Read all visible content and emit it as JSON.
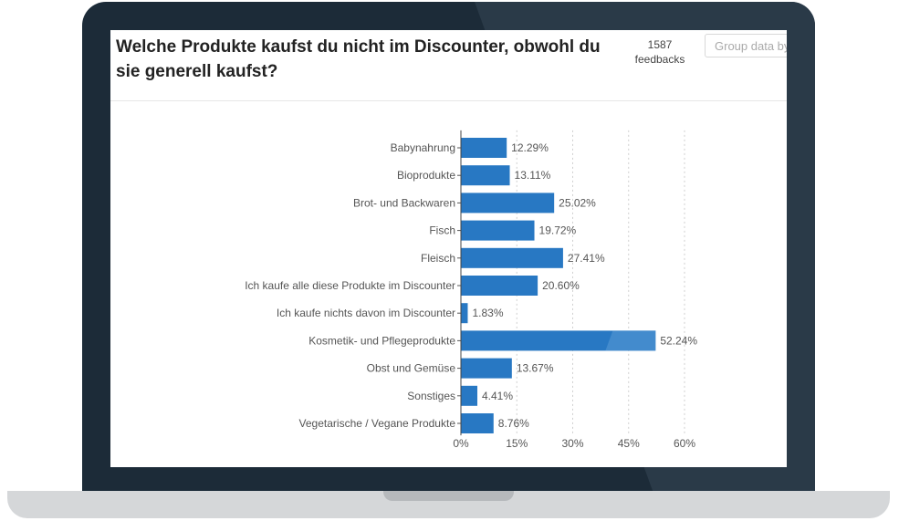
{
  "survey": {
    "question": "Welche Produkte kaufst du nicht im Discounter, obwohl du sie generell kaufst?",
    "feedback_count": "1587",
    "feedback_label": "feedbacks",
    "group_placeholder": "Group data by"
  },
  "colors": {
    "bar": "#2878c3",
    "bar_highlight": "#5a9ad6",
    "frame": "#1c2b38",
    "base": "#d5d7d9"
  },
  "chart_data": {
    "type": "bar",
    "orientation": "horizontal",
    "categories": [
      "Babynahrung",
      "Bioprodukte",
      "Brot- und Backwaren",
      "Fisch",
      "Fleisch",
      "Ich kaufe alle diese Produkte im Discounter",
      "Ich kaufe nichts davon im Discounter",
      "Kosmetik- und Pflegeprodukte",
      "Obst und Gemüse",
      "Sonstiges",
      "Vegetarische / Vegane Produkte"
    ],
    "values": [
      12.29,
      13.11,
      25.02,
      19.72,
      27.41,
      20.6,
      1.83,
      52.24,
      13.67,
      4.41,
      8.76
    ],
    "labels": [
      "12.29%",
      "13.11%",
      "25.02%",
      "19.72%",
      "27.41%",
      "20.60%",
      "1.83%",
      "52.24%",
      "13.67%",
      "4.41%",
      "8.76%"
    ],
    "xticks": [
      "0%",
      "15%",
      "30%",
      "45%",
      "60%"
    ],
    "xtick_values": [
      0,
      15,
      30,
      45,
      60
    ],
    "xlim": [
      0,
      60
    ],
    "grid": true
  }
}
